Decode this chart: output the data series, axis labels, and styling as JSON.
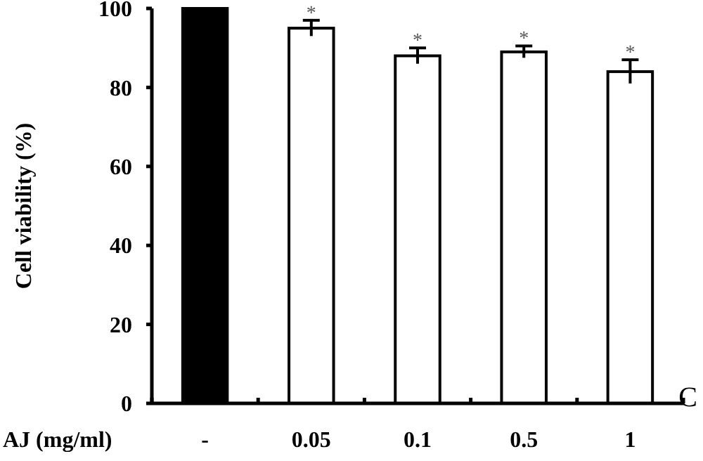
{
  "chart_data": {
    "type": "bar",
    "ylabel": "Cell viability (%)",
    "xlabel": "AJ (mg/ml)",
    "categories": [
      "-",
      "0.05",
      "0.1",
      "0.5",
      "1"
    ],
    "values": [
      100,
      95,
      88,
      89,
      84
    ],
    "errors": [
      null,
      2,
      2,
      1.5,
      3
    ],
    "colors": [
      "#000000",
      "#ffffff",
      "#ffffff",
      "#ffffff",
      "#ffffff"
    ],
    "ylim": [
      0,
      100
    ],
    "yticks": [
      0,
      20,
      40,
      60,
      80,
      100
    ],
    "annotations": [
      {
        "text": "*",
        "x": "0.05",
        "y": 97
      },
      {
        "text": "*",
        "x": "0.1",
        "y": 90
      },
      {
        "text": "*",
        "x": "0.5",
        "y": 90.5
      },
      {
        "text": "*",
        "x": "1",
        "y": 87
      },
      "C"
    ]
  }
}
